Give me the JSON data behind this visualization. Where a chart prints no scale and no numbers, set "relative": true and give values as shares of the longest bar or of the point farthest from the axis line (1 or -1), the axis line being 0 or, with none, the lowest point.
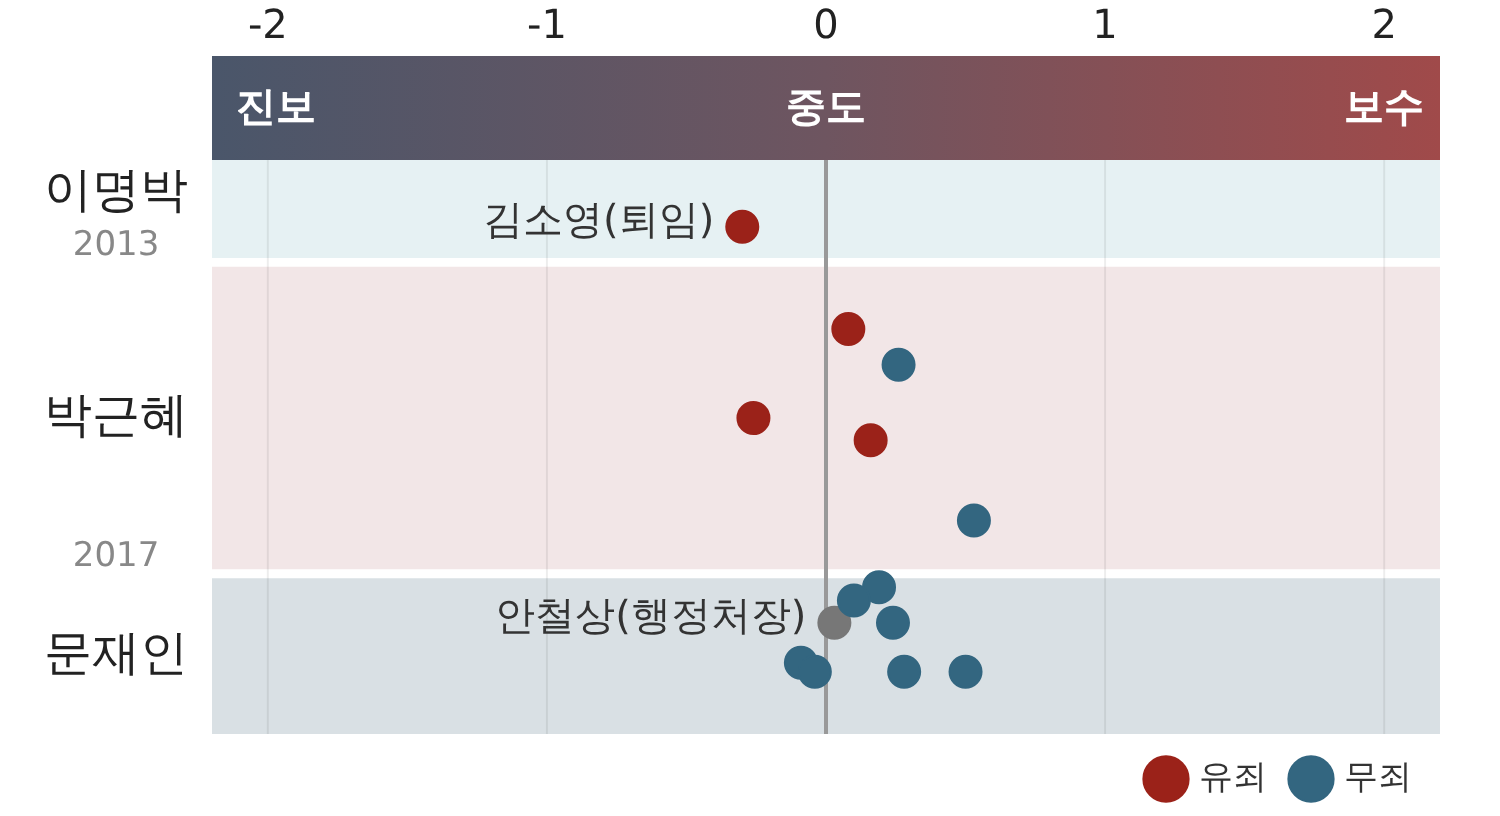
{
  "chart_data": {
    "type": "scatter",
    "relative": true,
    "xlim": [
      -2.2,
      2.2
    ],
    "xticks": [
      -2,
      -1,
      0,
      1,
      2
    ],
    "grid": "x",
    "legend": "bottom right",
    "marker": "circle",
    "tick_labels": "x",
    "series": [
      {
        "name": "유죄",
        "color": "#9b2219",
        "x": [
          -0.3,
          0.08,
          -0.26,
          0.16
        ],
        "values": [
          1,
          0.77,
          0.57,
          0.52
        ]
      },
      {
        "name": "무죄",
        "color": "#336680",
        "x": [
          0.26,
          0.53,
          0.19,
          0.1,
          0.24,
          -0.09,
          -0.04,
          0.28,
          0.5
        ],
        "values": [
          0.69,
          0.34,
          0.19,
          0.16,
          0.11,
          0.02,
          0,
          0,
          0
        ]
      },
      {
        "color": "#777777",
        "x": [
          0.03
        ],
        "values": [
          0.11
        ]
      }
    ],
    "bands": [
      {
        "axis": "y",
        "from": 0.93,
        "to": 1.15,
        "label": "이명박",
        "color": "#e6f1f3"
      },
      {
        "axis": "y",
        "from": 0.23,
        "to": 0.91,
        "label": "박근혜",
        "color": "#f2e6e7"
      },
      {
        "axis": "y",
        "from": -0.14,
        "to": 0.21,
        "label": "문재인",
        "color": "#d9e0e4"
      }
    ],
    "ref_lines": [
      {
        "axis": "x",
        "value": 0,
        "color": "#999999"
      }
    ],
    "annotations": [
      "진보",
      "중도",
      "보수",
      "2013",
      "2017",
      {
        "text": "김소영(퇴임)",
        "x": -0.3,
        "y": 1
      },
      {
        "text": "안철상(행정처장)",
        "x": 0.03,
        "y": 0.11
      }
    ]
  }
}
